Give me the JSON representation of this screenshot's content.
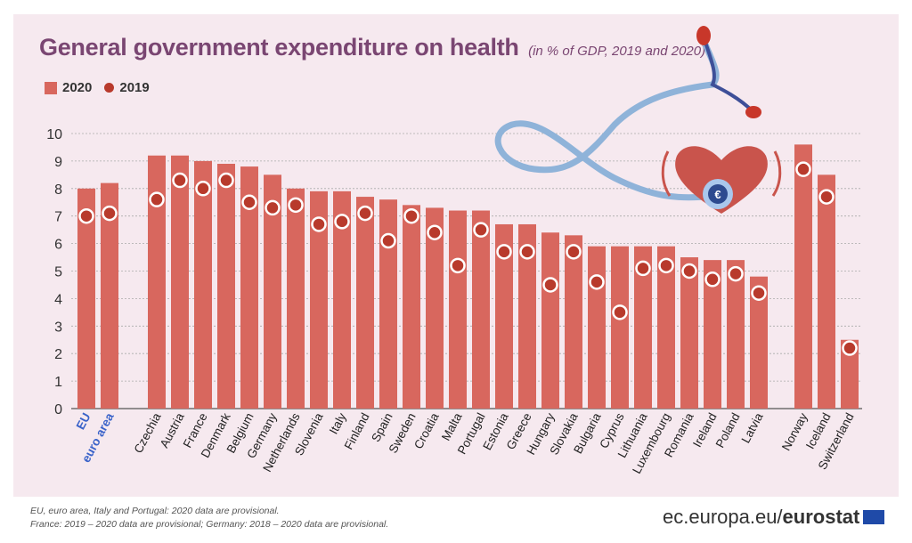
{
  "title": "General government expenditure on health",
  "subtitle": "(in % of GDP, 2019 and 2020)",
  "legend": {
    "series_2020": "2020",
    "series_2019": "2019"
  },
  "footnotes": [
    "EU, euro area, Italy and Portugal: 2020 data are provisional.",
    "France: 2019 – 2020 data are provisional; Germany: 2018 – 2020 data are provisional."
  ],
  "source": {
    "prefix": "ec.europa.eu/",
    "brand": "eurostat"
  },
  "colors": {
    "bar_2020": "#d8675e",
    "dot_2019": "#b83a2c",
    "highlight_label": "#3a63c9",
    "title": "#7a4672"
  },
  "chart_data": {
    "type": "bar",
    "title": "General government expenditure on health",
    "subtitle": "(in % of GDP, 2019 and 2020)",
    "ylim": [
      0,
      10
    ],
    "yticks": [
      0,
      1,
      2,
      3,
      4,
      5,
      6,
      7,
      8,
      9,
      10
    ],
    "grid": true,
    "legend_position": "top-left",
    "groups": [
      {
        "categories": [
          "EU",
          "euro area"
        ],
        "highlight": true,
        "v2020": [
          8.0,
          8.2
        ],
        "v2019": [
          7.0,
          7.1
        ]
      },
      {
        "categories": [
          "Czechia",
          "Austria",
          "France",
          "Denmark",
          "Belgium",
          "Germany",
          "Netherlands",
          "Slovenia",
          "Italy",
          "Finland",
          "Spain",
          "Sweden",
          "Croatia",
          "Malta",
          "Portugal",
          "Estonia",
          "Greece",
          "Hungary",
          "Slovakia",
          "Bulgaria",
          "Cyprus",
          "Lithuania",
          "Luxembourg",
          "Romania",
          "Ireland",
          "Poland",
          "Latvia"
        ],
        "highlight": false,
        "v2020": [
          9.2,
          9.2,
          9.0,
          8.9,
          8.8,
          8.5,
          8.0,
          7.9,
          7.9,
          7.7,
          7.6,
          7.4,
          7.3,
          7.2,
          7.2,
          6.7,
          6.7,
          6.4,
          6.3,
          5.9,
          5.9,
          5.9,
          5.9,
          5.5,
          5.4,
          5.4,
          4.8
        ],
        "v2019": [
          7.6,
          8.3,
          8.0,
          8.3,
          7.5,
          7.3,
          7.4,
          6.7,
          6.8,
          7.1,
          6.1,
          7.0,
          6.4,
          5.2,
          6.5,
          5.7,
          5.7,
          4.5,
          5.7,
          4.6,
          3.5,
          5.1,
          5.2,
          5.0,
          4.7,
          4.9,
          4.2
        ]
      },
      {
        "categories": [
          "Norway",
          "Iceland",
          "Switzerland"
        ],
        "highlight": false,
        "v2020": [
          9.6,
          8.5,
          2.5
        ],
        "v2019": [
          8.7,
          7.7,
          2.2
        ]
      }
    ]
  }
}
